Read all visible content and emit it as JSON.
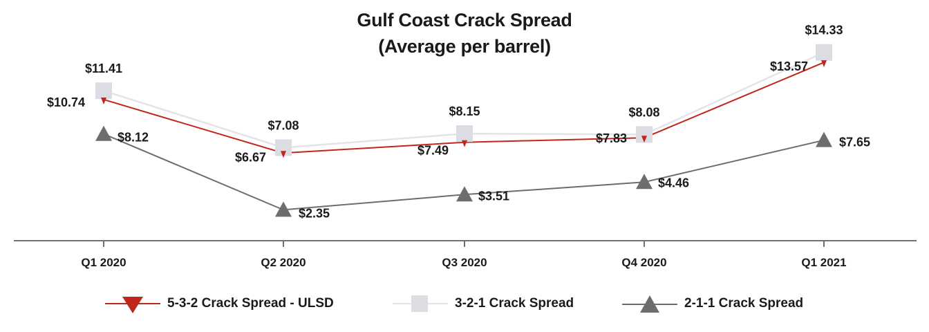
{
  "chart_data": {
    "type": "line",
    "title": "Gulf Coast Crack Spread",
    "subtitle": "(Average per barrel)",
    "categories": [
      "Q1 2020",
      "Q2 2020",
      "Q3 2020",
      "Q4 2020",
      "Q1 2021"
    ],
    "series": [
      {
        "name": "5-3-2 Crack Spread - ULSD",
        "values": [
          10.74,
          6.67,
          7.49,
          7.83,
          13.57
        ],
        "labels": [
          "$10.74",
          "$6.67",
          "$7.49",
          "$7.83",
          "$13.57"
        ],
        "color": "#c0261c",
        "marker": "triangle-down"
      },
      {
        "name": "3-2-1 Crack Spread",
        "values": [
          11.41,
          7.08,
          8.15,
          8.08,
          14.33
        ],
        "labels": [
          "$11.41",
          "$7.08",
          "$8.15",
          "$8.08",
          "$14.33"
        ],
        "color": "#dcdde3",
        "marker": "square"
      },
      {
        "name": "2-1-1 Crack Spread",
        "values": [
          8.12,
          2.35,
          3.51,
          4.46,
          7.65
        ],
        "labels": [
          "$8.12",
          "$2.35",
          "$3.51",
          "$4.46",
          "$7.65"
        ],
        "color": "#6d6d6d",
        "marker": "triangle-up"
      }
    ],
    "ylim": [
      0,
      16
    ],
    "grid": false,
    "legend_position": "bottom"
  }
}
